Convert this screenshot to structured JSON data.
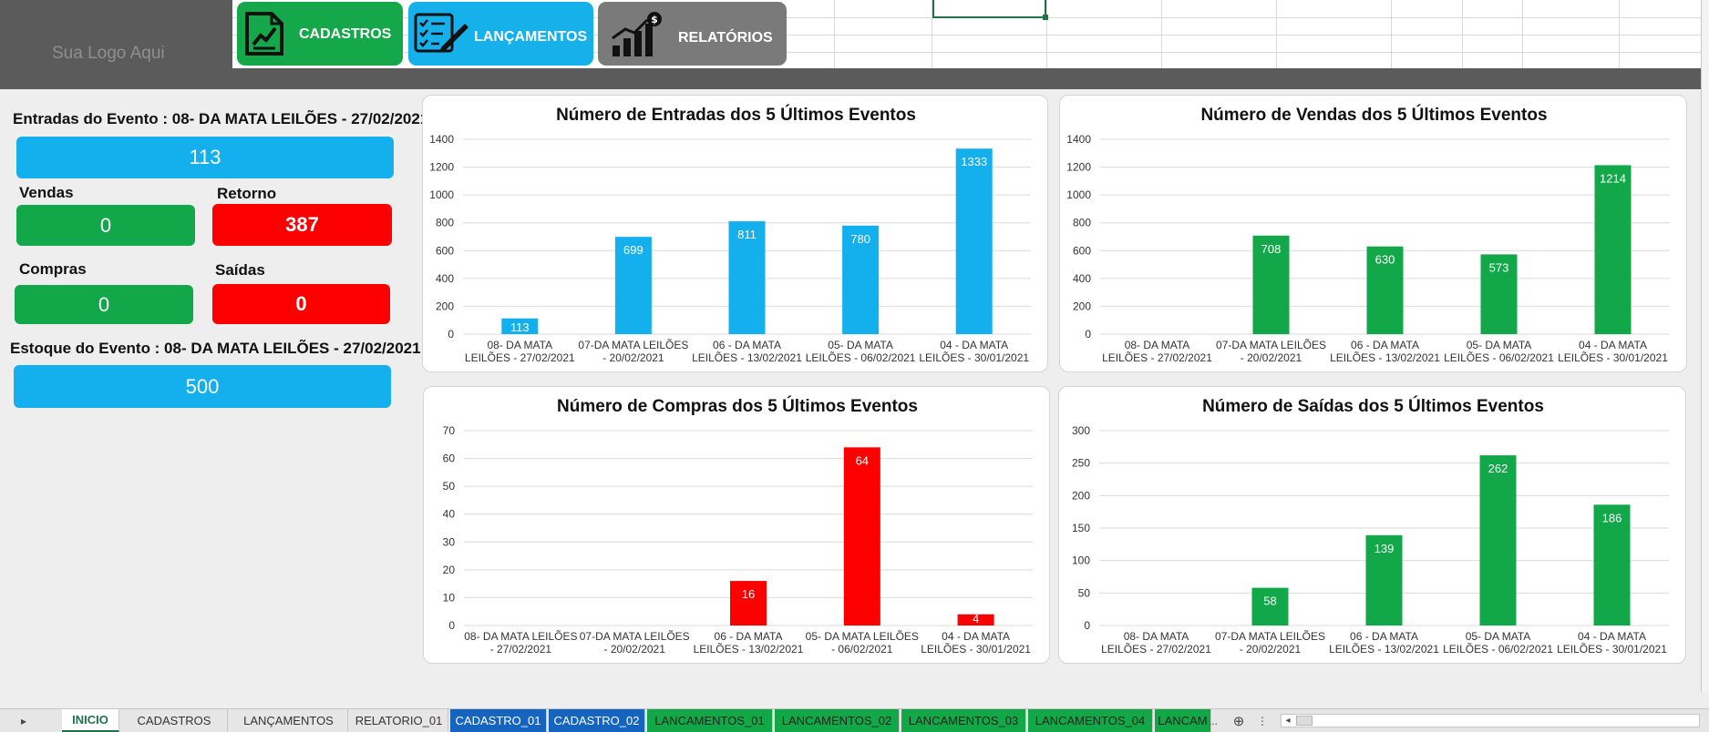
{
  "logo_text": "Sua Logo Aqui",
  "nav": [
    {
      "label": "CADASTROS",
      "icon": "chart-document-icon"
    },
    {
      "label": "LANÇAMENTOS",
      "icon": "checklist-pen-icon"
    },
    {
      "label": "RELATÓRIOS",
      "icon": "bar-chart-money-icon"
    }
  ],
  "summary": {
    "entradas_label": "Entradas do Evento : 08- DA MATA LEILÕES - 27/02/2021",
    "entradas_value": "113",
    "vendas_label": "Vendas",
    "vendas_value": "0",
    "retorno_label": "Retorno",
    "retorno_value": "387",
    "compras_label": "Compras",
    "compras_value": "0",
    "saidas_label": "Saídas",
    "saidas_value": "0",
    "estoque_label": "Estoque do Evento : 08- DA MATA LEILÕES - 27/02/2021",
    "estoque_value": "500"
  },
  "colors": {
    "blue": "#14b0ed",
    "green": "#12a84a",
    "red": "#fc0000"
  },
  "chart_data": [
    {
      "type": "bar",
      "title": "Número de Entradas dos 5 Últimos Eventos",
      "categories": [
        [
          "08- DA MATA",
          "LEILÕES - 27/02/2021"
        ],
        [
          "07-DA MATA LEILÕES",
          "- 20/02/2021"
        ],
        [
          "06 - DA MATA",
          "LEILÕES - 13/02/2021"
        ],
        [
          "05- DA MATA",
          "LEILÕES - 06/02/2021"
        ],
        [
          "04 - DA MATA",
          "LEILÕES - 30/01/2021"
        ]
      ],
      "values": [
        113,
        699,
        811,
        780,
        1333
      ],
      "ylim": [
        0,
        1400
      ],
      "yticks": [
        0,
        200,
        400,
        600,
        800,
        1000,
        1200,
        1400
      ],
      "color": "#14b0ed",
      "grid": true
    },
    {
      "type": "bar",
      "title": "Número de Vendas dos 5 Últimos Eventos",
      "categories": [
        [
          "08- DA MATA",
          "LEILÕES - 27/02/2021"
        ],
        [
          "07-DA MATA LEILÕES",
          "- 20/02/2021"
        ],
        [
          "06 - DA MATA",
          "LEILÕES - 13/02/2021"
        ],
        [
          "05- DA MATA",
          "LEILÕES - 06/02/2021"
        ],
        [
          "04 - DA MATA",
          "LEILÕES - 30/01/2021"
        ]
      ],
      "values": [
        0,
        708,
        630,
        573,
        1214
      ],
      "ylim": [
        0,
        1400
      ],
      "yticks": [
        0,
        200,
        400,
        600,
        800,
        1000,
        1200,
        1400
      ],
      "color": "#12a84a",
      "grid": true
    },
    {
      "type": "bar",
      "title": "Número de Compras dos 5 Últimos Eventos",
      "categories": [
        [
          "08- DA MATA LEILÕES",
          "- 27/02/2021"
        ],
        [
          "07-DA MATA LEILÕES",
          "- 20/02/2021"
        ],
        [
          "06 - DA MATA",
          "LEILÕES - 13/02/2021"
        ],
        [
          "05- DA MATA LEILÕES",
          "- 06/02/2021"
        ],
        [
          "04 - DA MATA",
          "LEILÕES - 30/01/2021"
        ]
      ],
      "values": [
        0,
        0,
        16,
        64,
        4
      ],
      "ylim": [
        0,
        70
      ],
      "yticks": [
        0,
        10,
        20,
        30,
        40,
        50,
        60,
        70
      ],
      "color": "#fc0000",
      "grid": true
    },
    {
      "type": "bar",
      "title": "Número de Saídas dos 5 Últimos Eventos",
      "categories": [
        [
          "08- DA MATA",
          "LEILÕES - 27/02/2021"
        ],
        [
          "07-DA MATA LEILÕES",
          "- 20/02/2021"
        ],
        [
          "06 - DA MATA",
          "LEILÕES - 13/02/2021"
        ],
        [
          "05- DA MATA",
          "LEILÕES - 06/02/2021"
        ],
        [
          "04 - DA MATA",
          "LEILÕES - 30/01/2021"
        ]
      ],
      "values": [
        0,
        58,
        139,
        262,
        186
      ],
      "ylim": [
        0,
        300
      ],
      "yticks": [
        0,
        50,
        100,
        150,
        200,
        250,
        300
      ],
      "color": "#12a84a",
      "grid": true
    }
  ],
  "tabs": [
    {
      "label": "INICIO",
      "style": "active"
    },
    {
      "label": "CADASTROS",
      "style": "plain"
    },
    {
      "label": "LANÇAMENTOS",
      "style": "plain"
    },
    {
      "label": "RELATORIO_01",
      "style": "plain"
    },
    {
      "label": "CADASTRO_01",
      "style": "blue"
    },
    {
      "label": "CADASTRO_02",
      "style": "blue"
    },
    {
      "label": "LANCAMENTOS_01",
      "style": "green"
    },
    {
      "label": "LANCAMENTOS_02",
      "style": "green"
    },
    {
      "label": "LANCAMENTOS_03",
      "style": "green"
    },
    {
      "label": "LANCAMENTOS_04",
      "style": "green"
    },
    {
      "label": "LANCAM",
      "style": "green"
    }
  ],
  "tab_nav": {
    "prev": "▸",
    "more": "...",
    "add": "⊕",
    "options": "⋮",
    "scroll_left": "◂",
    "scroll_right": "▸"
  }
}
